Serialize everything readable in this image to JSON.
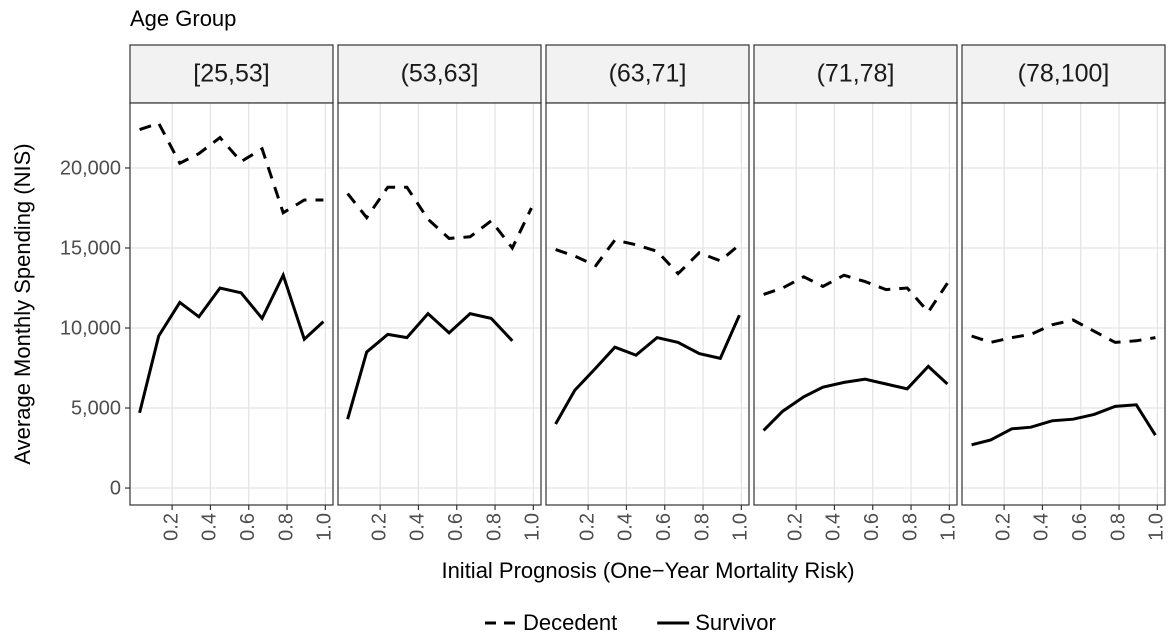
{
  "chart_data": {
    "type": "line",
    "facet_title": "Age Group",
    "x_label": "Initial Prognosis (One−Year Mortality Risk)",
    "y_label": "Average Monthly Spending (NIS)",
    "x": [
      0.03,
      0.13,
      0.24,
      0.34,
      0.45,
      0.56,
      0.67,
      0.78,
      0.89,
      0.99
    ],
    "xlim": [
      -0.02,
      1.04
    ],
    "xticks": [
      0.2,
      0.4,
      0.6,
      0.8,
      {
        "value": 1,
        "label": "1.0"
      }
    ],
    "ylim": [
      -1060,
      24060
    ],
    "yticks": [
      0,
      {
        "value": 5000,
        "label": "5,000"
      },
      {
        "value": 10000,
        "label": "10,000"
      },
      {
        "value": 15000,
        "label": "15,000"
      },
      {
        "value": 20000,
        "label": "20,000"
      }
    ],
    "grid": true,
    "legend": "bottom",
    "series": [
      {
        "name": "Decedent",
        "color": "#000000",
        "linestyle": "dashed"
      },
      {
        "name": "Survivor",
        "color": "#000000",
        "linestyle": "solid"
      }
    ],
    "facets": [
      {
        "title": "[25,53]",
        "values": [
          [
            22400,
            22800,
            20300,
            20900,
            21900,
            20400,
            21200,
            17200,
            18000,
            18000
          ],
          [
            4700,
            9500,
            11600,
            10700,
            12500,
            12200,
            10600,
            13300,
            9300,
            10400
          ]
        ]
      },
      {
        "title": "(53,63]",
        "values": [
          [
            18400,
            16900,
            18800,
            18800,
            16800,
            15600,
            15700,
            16700,
            15000,
            17500
          ],
          [
            4300,
            8500,
            9600,
            9400,
            10900,
            9700,
            10900,
            10600,
            9200,
            null
          ]
        ]
      },
      {
        "title": "(63,71]",
        "values": [
          [
            14900,
            14500,
            13900,
            15500,
            15200,
            14800,
            13400,
            14700,
            14200,
            15200
          ],
          [
            4000,
            6100,
            7500,
            8800,
            8300,
            9400,
            9100,
            8400,
            8100,
            10800
          ]
        ]
      },
      {
        "title": "(71,78]",
        "values": [
          [
            12100,
            12500,
            13200,
            12600,
            13300,
            12900,
            12400,
            12500,
            11000,
            12800
          ],
          [
            3600,
            4800,
            5700,
            6300,
            6600,
            6800,
            6500,
            6200,
            7600,
            6500
          ]
        ]
      },
      {
        "title": "(78,100]",
        "values": [
          [
            9500,
            9100,
            9400,
            9600,
            10200,
            10500,
            9800,
            9100,
            9200,
            9400
          ],
          [
            2700,
            3000,
            3700,
            3800,
            4200,
            4300,
            4600,
            5100,
            5200,
            3300
          ]
        ]
      }
    ]
  }
}
